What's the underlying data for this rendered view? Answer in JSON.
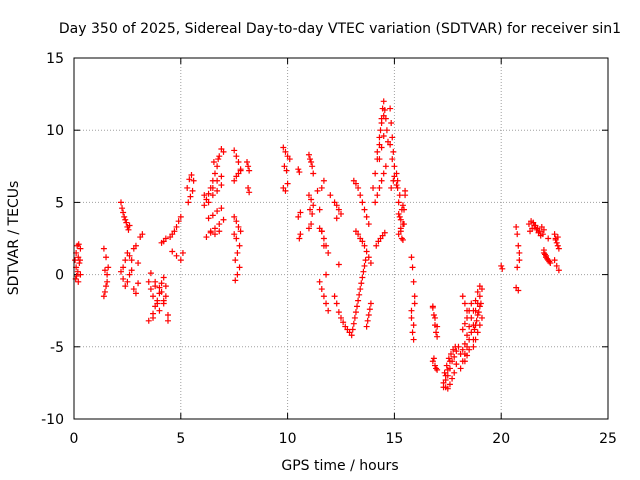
{
  "chart_data": {
    "type": "scatter",
    "title": "Day 350 of 2025, Sidereal Day-to-day VTEC variation (SDTVAR) for receiver sin1",
    "xlabel": "GPS time / hours",
    "ylabel": "SDTVAR / TECUs",
    "xlim": [
      0,
      25
    ],
    "ylim": [
      -10,
      15
    ],
    "x_ticks": [
      0,
      5,
      10,
      15,
      20,
      25
    ],
    "y_ticks": [
      -10,
      -5,
      0,
      5,
      10,
      15
    ],
    "grid": true,
    "marker": "+",
    "marker_color": "#ff0000",
    "series": [
      {
        "name": "SDTVAR",
        "x": [
          0.05,
          0.1,
          0.15,
          0.2,
          0.25,
          0.3,
          0.08,
          0.12,
          0.18,
          0.22,
          0.28,
          0.1,
          0.2,
          0.3,
          1.4,
          1.45,
          1.5,
          1.55,
          1.4,
          1.5,
          1.6,
          1.45,
          1.55,
          2.2,
          2.25,
          2.3,
          2.35,
          2.4,
          2.45,
          2.5,
          2.55,
          2.6,
          2.2,
          2.3,
          2.4,
          2.5,
          2.6,
          2.7,
          2.8,
          2.9,
          3.0,
          2.3,
          2.4,
          2.5,
          2.6,
          2.7,
          2.8,
          2.9,
          3.0,
          3.1,
          3.2,
          3.5,
          3.6,
          3.7,
          3.8,
          3.9,
          4.0,
          4.1,
          4.2,
          4.3,
          4.4,
          3.6,
          3.8,
          4.0,
          4.2,
          4.4,
          3.7,
          3.9,
          4.1,
          4.3,
          3.8,
          4.0,
          4.2,
          3.5,
          3.7,
          4.1,
          4.2,
          4.3,
          4.5,
          4.6,
          4.7,
          4.8,
          4.9,
          5.0,
          5.1,
          4.6,
          4.8,
          5.0,
          5.3,
          5.4,
          5.5,
          5.6,
          5.35,
          5.45,
          5.55,
          6.1,
          6.2,
          6.3,
          6.4,
          6.5,
          6.6,
          6.7,
          6.8,
          6.9,
          7.0,
          6.2,
          6.4,
          6.6,
          6.8,
          7.0,
          6.3,
          6.5,
          6.7,
          6.9,
          6.4,
          6.6,
          6.8,
          6.5,
          6.7,
          6.9,
          6.55,
          6.75,
          6.1,
          6.3,
          6.5,
          6.7,
          6.9,
          7.5,
          7.6,
          7.7,
          7.8,
          7.5,
          7.6,
          7.7,
          7.8,
          7.5,
          7.6,
          7.7,
          7.8,
          7.55,
          7.65,
          7.75,
          7.55,
          7.65,
          7.75,
          7.5,
          7.6,
          8.1,
          8.15,
          8.2,
          8.15,
          8.2,
          9.8,
          9.9,
          10.0,
          10.1,
          9.8,
          9.9,
          10.0,
          9.85,
          9.95,
          10.5,
          10.55,
          10.6,
          10.5,
          10.6,
          10.55,
          11.0,
          11.05,
          11.1,
          11.15,
          11.2,
          11.0,
          11.1,
          11.2,
          11.05,
          11.15,
          11.0,
          11.1,
          11.4,
          11.5,
          11.6,
          11.7,
          11.8,
          11.5,
          11.6,
          11.7,
          11.8,
          11.9,
          11.5,
          11.6,
          11.7,
          11.8,
          11.9,
          12.0,
          11.6,
          11.7,
          12.2,
          12.3,
          12.4,
          12.5,
          12.3,
          12.4,
          12.2,
          12.3,
          12.4,
          12.5,
          12.6,
          12.7,
          12.8,
          12.9,
          13.0,
          13.05,
          13.1,
          13.15,
          13.2,
          13.25,
          13.3,
          13.35,
          13.4,
          13.45,
          13.5,
          13.55,
          13.6,
          13.65,
          13.7,
          13.75,
          13.8,
          13.85,
          13.9,
          13.1,
          13.2,
          13.3,
          13.4,
          13.5,
          13.6,
          13.7,
          13.8,
          13.2,
          13.3,
          13.4,
          13.5,
          13.6,
          13.7,
          13.8,
          13.9,
          14.0,
          14.1,
          14.2,
          14.3,
          14.35,
          14.4,
          14.45,
          14.5,
          14.55,
          14.6,
          14.65,
          14.7,
          14.1,
          14.2,
          14.3,
          14.4,
          14.5,
          14.6,
          14.2,
          14.3,
          14.4,
          14.5,
          14.15,
          14.25,
          14.35,
          14.45,
          14.55,
          14.3,
          14.4,
          14.5,
          14.8,
          14.85,
          14.9,
          14.95,
          15.0,
          14.8,
          14.9,
          15.0,
          14.85,
          14.95,
          15.1,
          15.15,
          15.2,
          15.25,
          15.3,
          15.35,
          15.4,
          15.45,
          15.5,
          15.15,
          15.25,
          15.35,
          15.45,
          15.2,
          15.3,
          15.4,
          15.5,
          15.1,
          15.2,
          15.3,
          15.4,
          15.8,
          15.85,
          15.9,
          15.95,
          15.8,
          15.9,
          15.85,
          15.95,
          15.8,
          15.9,
          16.8,
          16.85,
          16.9,
          16.95,
          17.0,
          16.8,
          16.9,
          17.0,
          16.85,
          16.95,
          16.8,
          16.9,
          17.0,
          17.3,
          17.4,
          17.5,
          17.6,
          17.7,
          17.8,
          17.9,
          18.0,
          17.35,
          17.45,
          17.55,
          17.65,
          17.75,
          17.85,
          17.3,
          17.4,
          17.5,
          17.6,
          17.7,
          17.8,
          17.9,
          17.4,
          17.5,
          17.6,
          18.1,
          18.2,
          18.3,
          18.4,
          18.5,
          18.6,
          18.7,
          18.2,
          18.3,
          18.4,
          18.5,
          18.6,
          18.1,
          18.2,
          18.3,
          18.4,
          18.5,
          18.6,
          18.7,
          18.2,
          18.3,
          18.4,
          18.3,
          18.4,
          18.5,
          18.7,
          18.8,
          18.9,
          19.0,
          19.1,
          18.8,
          18.9,
          19.0,
          19.1,
          18.75,
          18.85,
          18.95,
          19.05,
          18.7,
          18.8,
          18.9,
          19.0,
          18.8,
          18.9,
          19.0,
          20.0,
          20.05,
          20.7,
          20.75,
          20.8,
          20.85,
          20.7,
          20.8,
          20.75,
          20.85,
          21.3,
          21.4,
          21.5,
          21.6,
          21.7,
          21.8,
          21.9,
          22.0,
          21.35,
          21.45,
          21.55,
          21.65,
          21.75,
          21.85,
          21.95,
          22.0,
          22.1,
          22.2,
          22.3,
          22.05,
          22.15,
          22.25,
          22.0,
          22.1,
          22.2,
          22.5,
          22.55,
          22.6,
          22.65,
          22.7,
          22.5,
          22.6,
          22.7,
          22.55,
          22.65
        ],
        "y": [
          1.0,
          1.5,
          2.0,
          1.2,
          0.8,
          1.8,
          -0.3,
          -0.1,
          0.2,
          2.1,
          1.0,
          0.5,
          -0.5,
          0.0,
          -1.5,
          -1.2,
          -0.8,
          0.0,
          1.8,
          1.2,
          0.5,
          0.3,
          -0.5,
          5.0,
          4.6,
          4.3,
          4.0,
          3.8,
          3.6,
          3.3,
          3.1,
          3.4,
          0.2,
          0.5,
          1.0,
          1.5,
          1.3,
          1.0,
          1.8,
          2.0,
          0.8,
          -0.3,
          -0.8,
          -0.5,
          0.0,
          0.3,
          -1.0,
          -1.3,
          -0.6,
          2.6,
          2.8,
          -0.5,
          -1.0,
          -1.5,
          -0.8,
          -2.0,
          -2.5,
          -1.2,
          -0.2,
          -0.8,
          -3.2,
          0.1,
          -0.5,
          -1.3,
          -2.0,
          -2.8,
          -3.0,
          -1.8,
          -0.6,
          -1.5,
          -2.2,
          -0.9,
          -1.8,
          -3.2,
          -2.7,
          2.2,
          2.3,
          2.5,
          2.6,
          2.8,
          3.0,
          3.3,
          3.7,
          4.0,
          1.5,
          1.6,
          1.3,
          1.0,
          6.0,
          6.6,
          6.9,
          6.5,
          5.0,
          5.4,
          5.8,
          4.8,
          5.2,
          5.6,
          6.0,
          6.5,
          7.0,
          7.5,
          8.2,
          8.7,
          8.5,
          2.6,
          2.9,
          3.2,
          3.5,
          3.8,
          3.9,
          4.1,
          4.4,
          4.6,
          3.0,
          2.8,
          3.0,
          5.5,
          5.8,
          6.2,
          7.8,
          8.0,
          5.5,
          5.0,
          6.0,
          6.5,
          6.8,
          8.6,
          8.2,
          7.8,
          7.3,
          6.5,
          6.8,
          7.0,
          7.2,
          4.0,
          3.7,
          3.3,
          3.0,
          -0.4,
          0.0,
          0.5,
          1.0,
          1.5,
          2.0,
          2.8,
          2.5,
          7.8,
          7.5,
          7.2,
          6.0,
          5.7,
          8.8,
          8.5,
          8.2,
          8.0,
          6.0,
          5.8,
          6.3,
          7.5,
          7.2,
          7.3,
          7.1,
          4.3,
          4.0,
          2.8,
          2.5,
          8.3,
          8.0,
          7.8,
          7.5,
          7.0,
          5.5,
          5.2,
          4.8,
          4.5,
          4.2,
          3.2,
          3.5,
          5.8,
          4.5,
          3.0,
          2.0,
          0.0,
          -0.5,
          -1.0,
          -1.5,
          -2.0,
          -2.5,
          3.2,
          3.0,
          2.5,
          2.0,
          1.5,
          5.5,
          6.0,
          6.5,
          5.0,
          4.8,
          4.5,
          4.2,
          3.9,
          0.7,
          -1.5,
          -2.0,
          -2.6,
          -3.0,
          -3.3,
          -3.6,
          -3.8,
          -4.0,
          -4.2,
          -3.8,
          -3.4,
          -3.0,
          -2.6,
          -2.2,
          -1.8,
          -1.4,
          -1.0,
          -0.6,
          -0.2,
          0.2,
          0.6,
          1.0,
          -3.6,
          -3.2,
          -2.8,
          -2.4,
          -2.0,
          6.5,
          6.3,
          6.0,
          5.5,
          5.0,
          4.5,
          4.0,
          3.5,
          3.0,
          2.8,
          2.5,
          2.3,
          2.0,
          1.6,
          1.2,
          0.8,
          6.0,
          7.0,
          8.0,
          9.0,
          10.0,
          10.8,
          11.5,
          12.0,
          11.4,
          10.8,
          10.0,
          9.2,
          5.0,
          5.5,
          6.0,
          6.5,
          7.0,
          7.5,
          8.5,
          9.5,
          10.5,
          11.0,
          2.0,
          2.3,
          2.5,
          2.7,
          2.9,
          8.0,
          8.8,
          9.6,
          11.5,
          10.5,
          9.5,
          8.5,
          7.5,
          9.0,
          8.0,
          6.8,
          6.0,
          6.5,
          7.0,
          6.0,
          5.0,
          4.0,
          3.0,
          2.5,
          3.5,
          4.5,
          5.5,
          6.5,
          5.5,
          4.5,
          3.5,
          2.8,
          3.8,
          4.8,
          5.8,
          6.2,
          4.2,
          3.2,
          2.4,
          1.2,
          0.5,
          -0.5,
          -1.5,
          -2.5,
          -3.5,
          -4.0,
          -2.0,
          -3.0,
          -4.5,
          -2.3,
          -2.8,
          -3.5,
          -4.0,
          -4.3,
          -6.0,
          -6.3,
          -6.6,
          -5.8,
          -6.5,
          -2.2,
          -3.0,
          -3.6,
          -7.8,
          -7.3,
          -7.0,
          -6.5,
          -6.0,
          -5.7,
          -5.3,
          -5.0,
          -6.8,
          -6.3,
          -5.8,
          -5.5,
          -5.2,
          -5.0,
          -7.5,
          -7.8,
          -7.9,
          -7.6,
          -7.2,
          -6.8,
          -6.2,
          -7.0,
          -6.6,
          -6.0,
          -6.5,
          -6.0,
          -5.5,
          -5.0,
          -4.5,
          -4.0,
          -3.5,
          -3.8,
          -3.4,
          -3.0,
          -2.5,
          -2.0,
          -5.5,
          -5.2,
          -4.8,
          -4.2,
          -3.6,
          -3.0,
          -2.5,
          -1.5,
          -2.0,
          -2.5,
          -6.0,
          -5.6,
          -5.2,
          -5.0,
          -4.5,
          -4.0,
          -3.5,
          -3.0,
          -2.5,
          -2.0,
          -1.5,
          -1.0,
          -3.8,
          -3.2,
          -2.6,
          -2.0,
          -4.5,
          -1.8,
          -1.2,
          -0.8,
          -3.5,
          -2.8,
          -2.2,
          0.6,
          0.4,
          3.3,
          2.8,
          2.0,
          1.5,
          -0.9,
          -1.1,
          0.5,
          1.0,
          3.5,
          3.7,
          3.6,
          3.4,
          3.2,
          3.0,
          3.3,
          3.1,
          3.0,
          3.2,
          3.4,
          3.1,
          2.9,
          2.7,
          2.8,
          1.5,
          1.2,
          1.0,
          0.8,
          1.4,
          1.1,
          0.9,
          1.7,
          1.3,
          2.5,
          2.8,
          2.5,
          2.2,
          2.0,
          1.8,
          1.0,
          0.6,
          0.3,
          2.4,
          2.6
        ]
      }
    ]
  }
}
